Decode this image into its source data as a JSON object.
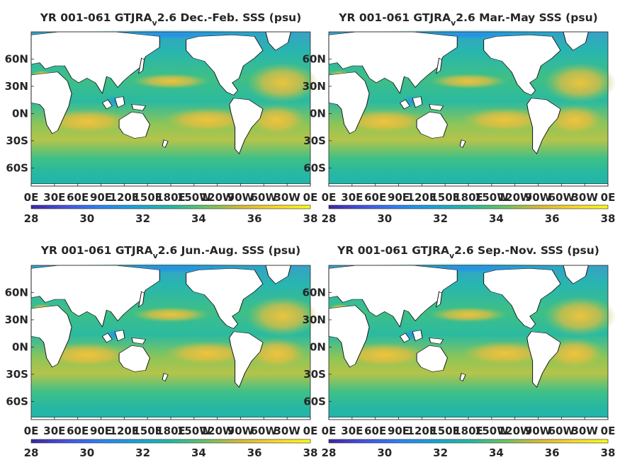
{
  "figure": {
    "colormap": [
      "#3e26a8",
      "#4653e2",
      "#2c83f6",
      "#16a5d8",
      "#22b9a4",
      "#69c465",
      "#d7ba35",
      "#fbd62a",
      "#f9fb15"
    ],
    "land_color": "#ffffff"
  },
  "chart_data": [
    {
      "type": "heatmap",
      "title": "YR 001-061 GTJRA",
      "title_sub": "v",
      "title_tail": "2.6 Dec.-Feb. SSS (psu)",
      "x_ticks": [
        "0E",
        "30E",
        "60E",
        "90E",
        "120E",
        "150E",
        "180E",
        "150W",
        "120W",
        "90W",
        "60W",
        "30W",
        "0E"
      ],
      "y_ticks": [
        "60N",
        "30N",
        "0N",
        "30S",
        "60S"
      ],
      "xlim": [
        0,
        360
      ],
      "ylim": [
        -80,
        90
      ],
      "colorbar": {
        "ticks": [
          "28",
          "30",
          "32",
          "34",
          "36",
          "38"
        ],
        "range": [
          28,
          38
        ]
      }
    },
    {
      "type": "heatmap",
      "title": "YR 001-061 GTJRA",
      "title_sub": "v",
      "title_tail": "2.6 Mar.-May SSS (psu)",
      "x_ticks": [
        "0E",
        "30E",
        "60E",
        "90E",
        "120E",
        "150E",
        "180E",
        "150W",
        "120W",
        "90W",
        "60W",
        "30W",
        "0E"
      ],
      "y_ticks": [
        "60N",
        "30N",
        "0N",
        "30S",
        "60S"
      ],
      "xlim": [
        0,
        360
      ],
      "ylim": [
        -80,
        90
      ],
      "colorbar": {
        "ticks": [
          "28",
          "30",
          "32",
          "34",
          "36",
          "38"
        ],
        "range": [
          28,
          38
        ]
      }
    },
    {
      "type": "heatmap",
      "title": "YR 001-061 GTJRA",
      "title_sub": "v",
      "title_tail": "2.6 Jun.-Aug. SSS (psu)",
      "x_ticks": [
        "0E",
        "30E",
        "60E",
        "90E",
        "120E",
        "150E",
        "180E",
        "150W",
        "120W",
        "90W",
        "60W",
        "30W",
        "0E"
      ],
      "y_ticks": [
        "60N",
        "30N",
        "0N",
        "30S",
        "60S"
      ],
      "xlim": [
        0,
        360
      ],
      "ylim": [
        -80,
        90
      ],
      "colorbar": {
        "ticks": [
          "28",
          "30",
          "32",
          "34",
          "36",
          "38"
        ],
        "range": [
          28,
          38
        ]
      }
    },
    {
      "type": "heatmap",
      "title": "YR 001-061 GTJRA",
      "title_sub": "v",
      "title_tail": "2.6 Sep.-Nov. SSS (psu)",
      "x_ticks": [
        "0E",
        "30E",
        "60E",
        "90E",
        "120E",
        "150E",
        "180E",
        "150W",
        "120W",
        "90W",
        "60W",
        "30W",
        "0E"
      ],
      "y_ticks": [
        "60N",
        "30N",
        "0N",
        "30S",
        "60S"
      ],
      "xlim": [
        0,
        360
      ],
      "ylim": [
        -80,
        90
      ],
      "colorbar": {
        "ticks": [
          "28",
          "30",
          "32",
          "34",
          "36",
          "38"
        ],
        "range": [
          28,
          38
        ]
      }
    }
  ]
}
